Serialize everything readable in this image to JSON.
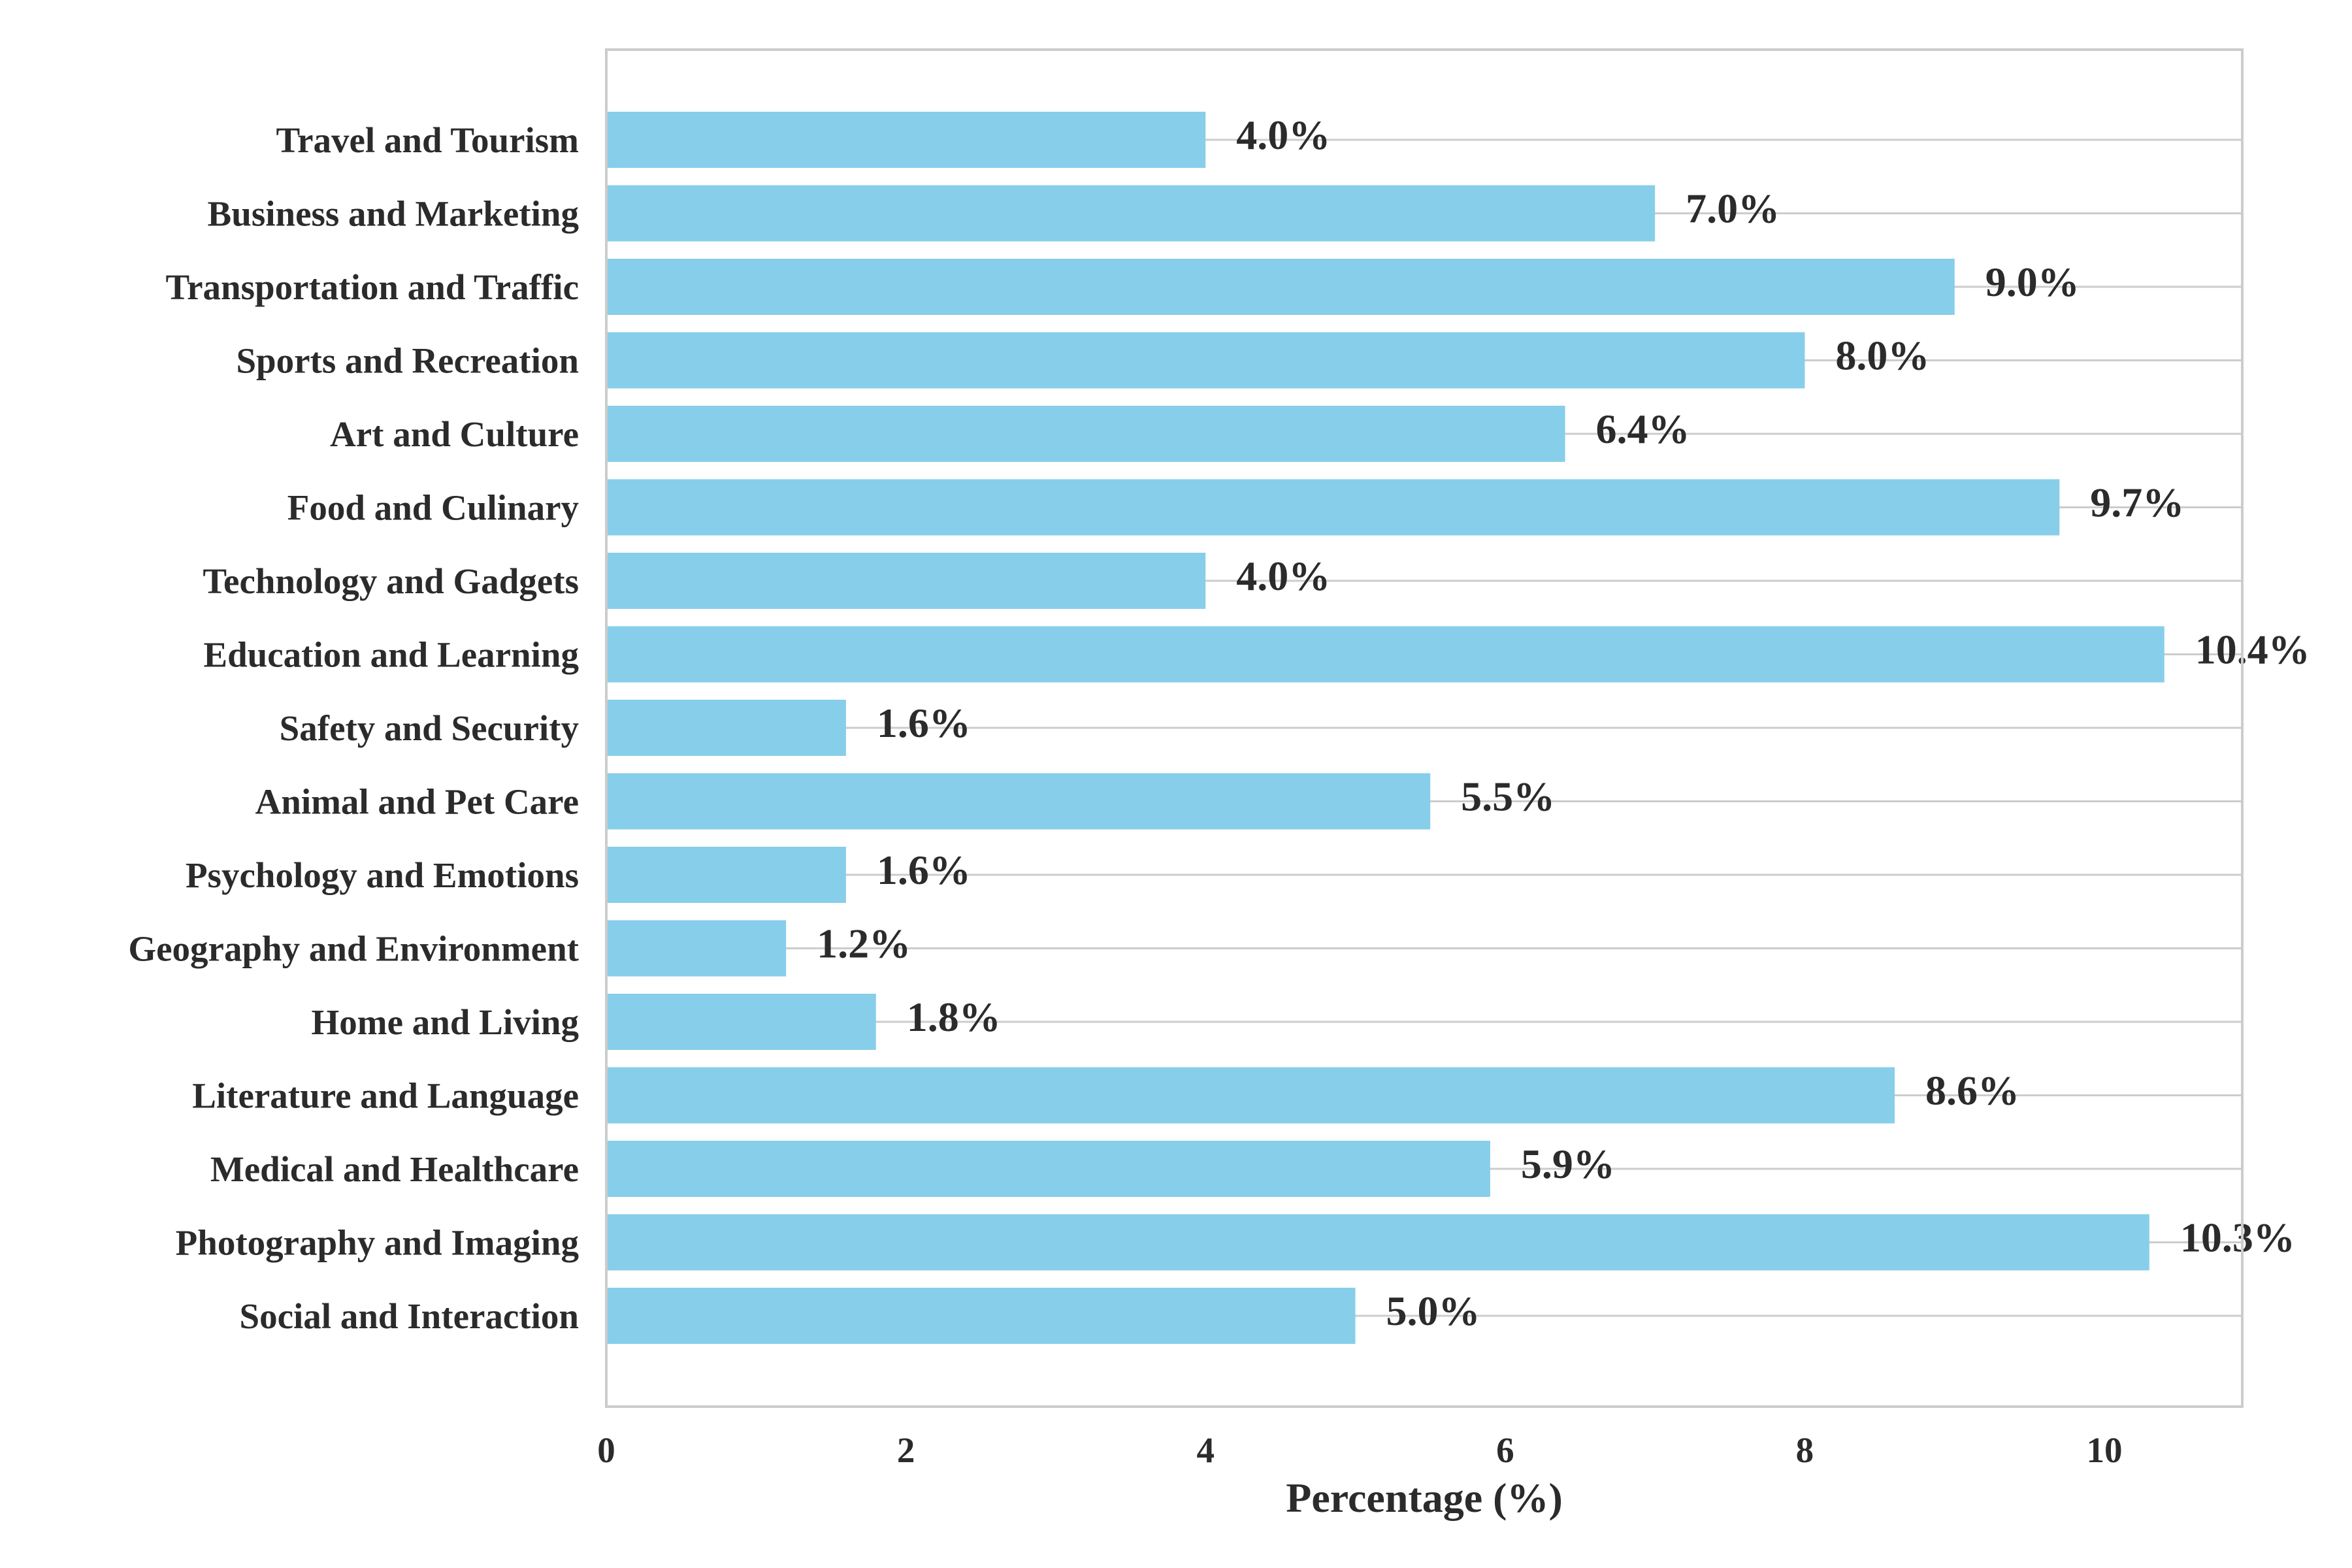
{
  "chart_data": {
    "type": "bar",
    "orientation": "horizontal",
    "title": "",
    "xlabel": "Percentage (%)",
    "ylabel": "",
    "xlim": [
      0,
      10.92
    ],
    "xticks": [
      0,
      2,
      4,
      6,
      8,
      10
    ],
    "grid": "horizontal lines at each category",
    "legend": "none",
    "categories": [
      "Travel and Tourism",
      "Business and Marketing",
      "Transportation and Traffic",
      "Sports and Recreation",
      "Art and Culture",
      "Food and Culinary",
      "Technology and Gadgets",
      "Education and Learning",
      "Safety and Security",
      "Animal and Pet Care",
      "Psychology and Emotions",
      "Geography and Environment",
      "Home and Living",
      "Literature and Language",
      "Medical and Healthcare",
      "Photography and Imaging",
      "Social and Interaction"
    ],
    "values": [
      4.0,
      7.0,
      9.0,
      8.0,
      6.4,
      9.7,
      4.0,
      10.4,
      1.6,
      5.5,
      1.6,
      1.2,
      1.8,
      8.6,
      5.9,
      10.3,
      5.0
    ],
    "data_labels": [
      "4.0%",
      "7.0%",
      "9.0%",
      "8.0%",
      "6.4%",
      "9.7%",
      "4.0%",
      "10.4%",
      "1.6%",
      "5.5%",
      "1.6%",
      "1.2%",
      "1.8%",
      "8.6%",
      "5.9%",
      "10.3%",
      "5.0%"
    ],
    "colors": {
      "bar": "#87ceeb",
      "grid": "#cccccc",
      "frame": "#cccccc",
      "text": "#2b2b2b"
    }
  }
}
